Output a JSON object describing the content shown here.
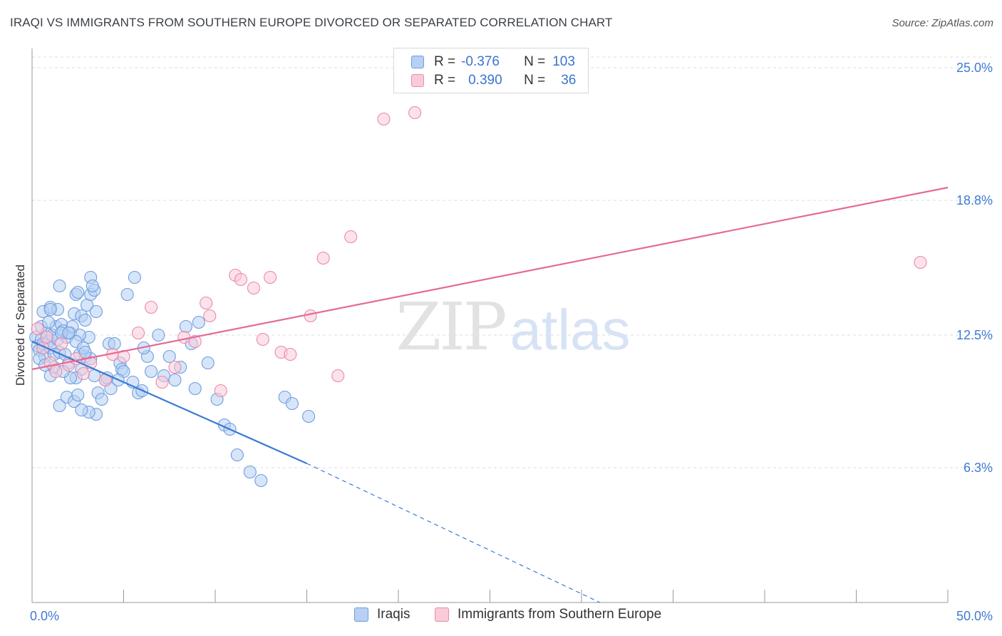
{
  "title": "IRAQI VS IMMIGRANTS FROM SOUTHERN EUROPE DIVORCED OR SEPARATED CORRELATION CHART",
  "source": "Source: ZipAtlas.com",
  "watermark": {
    "zip": "ZIP",
    "atlas": "atlas"
  },
  "legend": {
    "r_label": "R =",
    "n_label": "N =",
    "rows": [
      {
        "name": "Iraqis",
        "r": "-0.376",
        "n": "103",
        "fill": "#b7d0f3",
        "stroke": "#6d9de0"
      },
      {
        "name": "Immigrants from Southern Europe",
        "r": "0.390",
        "n": "36",
        "fill": "#f9cbd9",
        "stroke": "#e98aa8"
      }
    ]
  },
  "chart_data": {
    "type": "scatter",
    "title": "IRAQI VS IMMIGRANTS FROM SOUTHERN EUROPE DIVORCED OR SEPARATED CORRELATION CHART",
    "xlabel": "",
    "ylabel": "Divorced or Separated",
    "xlim": [
      0,
      50
    ],
    "ylim": [
      0,
      25.5
    ],
    "x_tick_labels": [
      "0.0%",
      "50.0%"
    ],
    "y_ticks": [
      {
        "value": 6.3,
        "label": "6.3%"
      },
      {
        "value": 12.5,
        "label": "12.5%"
      },
      {
        "value": 18.8,
        "label": "18.8%"
      },
      {
        "value": 25.0,
        "label": "25.0%"
      }
    ],
    "grid": true,
    "series": [
      {
        "name": "Iraqis",
        "color": "#3a7bd5",
        "fill": "#b7d0f3",
        "stroke": "#6d9de0",
        "trend": {
          "x0": 0,
          "y0": 12.2,
          "x1": 15,
          "y1": 6.5,
          "dashed_to_x": 31,
          "dashed_to_y": 0
        },
        "points": [
          [
            0.2,
            12.4
          ],
          [
            0.3,
            12.0
          ],
          [
            0.4,
            11.8
          ],
          [
            0.5,
            12.3
          ],
          [
            0.6,
            12.1
          ],
          [
            0.7,
            11.5
          ],
          [
            0.8,
            12.6
          ],
          [
            0.9,
            12.2
          ],
          [
            1.0,
            11.9
          ],
          [
            1.1,
            12.5
          ],
          [
            1.2,
            11.6
          ],
          [
            1.3,
            12.9
          ],
          [
            1.4,
            12.3
          ],
          [
            1.5,
            11.7
          ],
          [
            1.6,
            13.0
          ],
          [
            1.7,
            12.7
          ],
          [
            1.8,
            11.6
          ],
          [
            1.9,
            12.4
          ],
          [
            2.0,
            11.2
          ],
          [
            2.1,
            12.6
          ],
          [
            0.5,
            12.9
          ],
          [
            0.6,
            13.6
          ],
          [
            0.9,
            13.1
          ],
          [
            1.0,
            13.8
          ],
          [
            1.4,
            13.7
          ],
          [
            1.6,
            12.6
          ],
          [
            0.4,
            11.4
          ],
          [
            0.7,
            11.1
          ],
          [
            1.0,
            10.6
          ],
          [
            1.2,
            11.0
          ],
          [
            1.5,
            9.2
          ],
          [
            1.9,
            9.6
          ],
          [
            2.3,
            9.4
          ],
          [
            2.5,
            9.7
          ],
          [
            2.7,
            10.9
          ],
          [
            2.9,
            11.5
          ],
          [
            3.1,
            12.4
          ],
          [
            2.6,
            12.5
          ],
          [
            2.4,
            12.2
          ],
          [
            2.2,
            12.9
          ],
          [
            2.0,
            12.6
          ],
          [
            2.3,
            13.5
          ],
          [
            2.4,
            14.4
          ],
          [
            2.7,
            13.4
          ],
          [
            2.9,
            13.2
          ],
          [
            3.0,
            13.9
          ],
          [
            3.2,
            14.4
          ],
          [
            2.5,
            14.5
          ],
          [
            1.5,
            14.8
          ],
          [
            1.0,
            13.7
          ],
          [
            2.6,
            11.6
          ],
          [
            2.8,
            11.9
          ],
          [
            3.2,
            11.4
          ],
          [
            3.4,
            10.6
          ],
          [
            3.6,
            9.8
          ],
          [
            3.8,
            9.5
          ],
          [
            4.0,
            10.4
          ],
          [
            4.1,
            10.5
          ],
          [
            4.3,
            10.0
          ],
          [
            3.5,
            8.8
          ],
          [
            3.1,
            8.9
          ],
          [
            2.7,
            9.0
          ],
          [
            2.9,
            11.7
          ],
          [
            2.4,
            10.5
          ],
          [
            2.1,
            10.5
          ],
          [
            1.7,
            10.8
          ],
          [
            4.2,
            12.1
          ],
          [
            4.5,
            12.1
          ],
          [
            3.5,
            13.6
          ],
          [
            3.4,
            14.6
          ],
          [
            3.2,
            15.2
          ],
          [
            3.3,
            14.8
          ],
          [
            4.8,
            11.2
          ],
          [
            4.9,
            10.9
          ],
          [
            5.0,
            10.8
          ],
          [
            5.2,
            14.4
          ],
          [
            4.7,
            10.4
          ],
          [
            5.5,
            10.3
          ],
          [
            5.8,
            9.8
          ],
          [
            6.0,
            9.9
          ],
          [
            5.6,
            15.2
          ],
          [
            6.3,
            11.5
          ],
          [
            6.5,
            10.8
          ],
          [
            7.2,
            10.6
          ],
          [
            7.5,
            11.5
          ],
          [
            8.1,
            11.0
          ],
          [
            8.4,
            12.9
          ],
          [
            8.7,
            12.1
          ],
          [
            9.1,
            13.1
          ],
          [
            9.6,
            11.2
          ],
          [
            10.1,
            9.5
          ],
          [
            10.5,
            8.3
          ],
          [
            10.8,
            8.1
          ],
          [
            11.2,
            6.9
          ],
          [
            11.9,
            6.1
          ],
          [
            12.5,
            5.7
          ],
          [
            13.8,
            9.6
          ],
          [
            14.2,
            9.3
          ],
          [
            15.1,
            8.7
          ],
          [
            6.9,
            12.5
          ],
          [
            6.1,
            11.9
          ],
          [
            7.8,
            10.4
          ],
          [
            8.9,
            10.0
          ]
        ]
      },
      {
        "name": "Immigrants from Southern Europe",
        "color": "#e66a93",
        "fill": "#f9cbd9",
        "stroke": "#e98aa8",
        "trend": {
          "x0": 0,
          "y0": 10.9,
          "x1": 50,
          "y1": 19.4
        },
        "points": [
          [
            0.3,
            12.8
          ],
          [
            0.6,
            11.9
          ],
          [
            0.8,
            12.4
          ],
          [
            1.0,
            11.2
          ],
          [
            1.3,
            10.8
          ],
          [
            1.6,
            12.1
          ],
          [
            2.0,
            11.1
          ],
          [
            2.4,
            11.4
          ],
          [
            2.8,
            10.7
          ],
          [
            3.2,
            11.2
          ],
          [
            4.0,
            10.4
          ],
          [
            4.4,
            11.6
          ],
          [
            5.0,
            11.5
          ],
          [
            5.8,
            12.6
          ],
          [
            6.5,
            13.8
          ],
          [
            7.1,
            10.3
          ],
          [
            7.8,
            11.0
          ],
          [
            8.3,
            12.4
          ],
          [
            8.9,
            12.2
          ],
          [
            9.5,
            14.0
          ],
          [
            9.7,
            13.4
          ],
          [
            10.3,
            9.9
          ],
          [
            11.1,
            15.3
          ],
          [
            11.4,
            15.1
          ],
          [
            12.1,
            14.7
          ],
          [
            12.6,
            12.3
          ],
          [
            13.0,
            15.2
          ],
          [
            13.6,
            11.7
          ],
          [
            14.1,
            11.6
          ],
          [
            15.2,
            13.4
          ],
          [
            15.9,
            16.1
          ],
          [
            16.7,
            10.6
          ],
          [
            17.4,
            17.1
          ],
          [
            19.2,
            22.6
          ],
          [
            20.9,
            22.9
          ],
          [
            48.5,
            15.9
          ]
        ]
      }
    ]
  }
}
